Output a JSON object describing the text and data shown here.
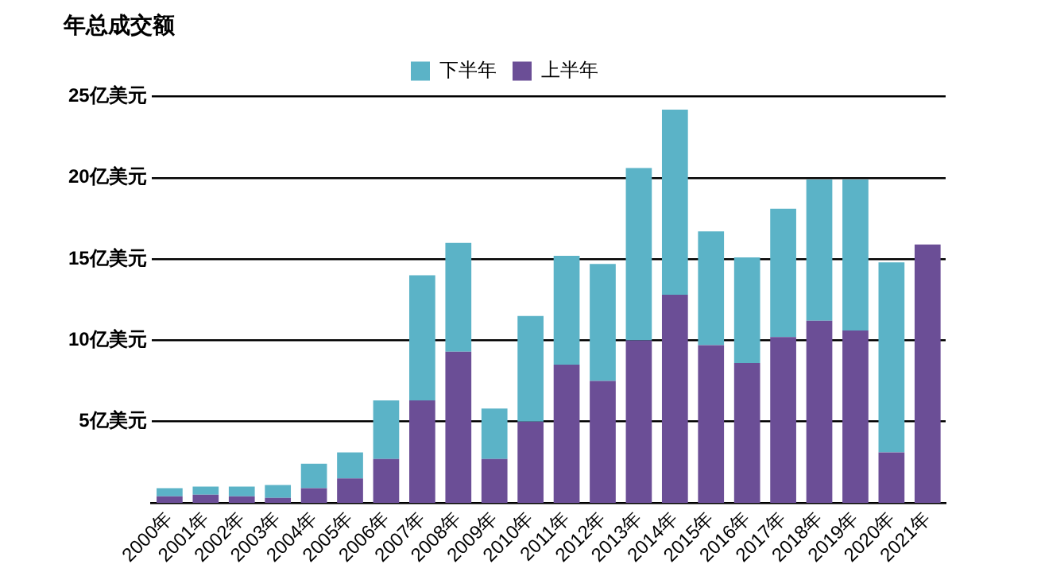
{
  "chart_data": {
    "type": "bar",
    "title": "年总成交额",
    "stacked": true,
    "grid": "y",
    "legend": "top",
    "categories": [
      "2000年",
      "2001年",
      "2002年",
      "2003年",
      "2004年",
      "2005年",
      "2006年",
      "2007年",
      "2008年",
      "2009年",
      "2010年",
      "2011年",
      "2012年",
      "2013年",
      "2014年",
      "2015年",
      "2016年",
      "2017年",
      "2018年",
      "2019年",
      "2020年",
      "2021年"
    ],
    "series": [
      {
        "name": "上半年",
        "color": "#6b4e96",
        "values": [
          0.4,
          0.5,
          0.4,
          0.3,
          0.9,
          1.5,
          2.7,
          6.3,
          9.3,
          2.7,
          5.0,
          8.5,
          7.5,
          10.0,
          12.8,
          9.7,
          8.6,
          10.2,
          11.2,
          10.6,
          3.1,
          15.9
        ]
      },
      {
        "name": "下半年",
        "color": "#5bb3c7",
        "values": [
          0.5,
          0.5,
          0.6,
          0.8,
          1.5,
          1.6,
          3.6,
          7.7,
          6.7,
          3.1,
          6.5,
          6.7,
          7.2,
          10.6,
          11.4,
          7.0,
          6.5,
          7.9,
          8.7,
          9.3,
          11.7,
          0
        ]
      }
    ],
    "ylim": [
      0,
      25
    ],
    "yticks": [
      {
        "value": 5,
        "label": "5亿美元"
      },
      {
        "value": 10,
        "label": "10亿美元"
      },
      {
        "value": 15,
        "label": "15亿美元"
      },
      {
        "value": 20,
        "label": "20亿美元"
      },
      {
        "value": 25,
        "label": "25亿美元"
      }
    ]
  }
}
